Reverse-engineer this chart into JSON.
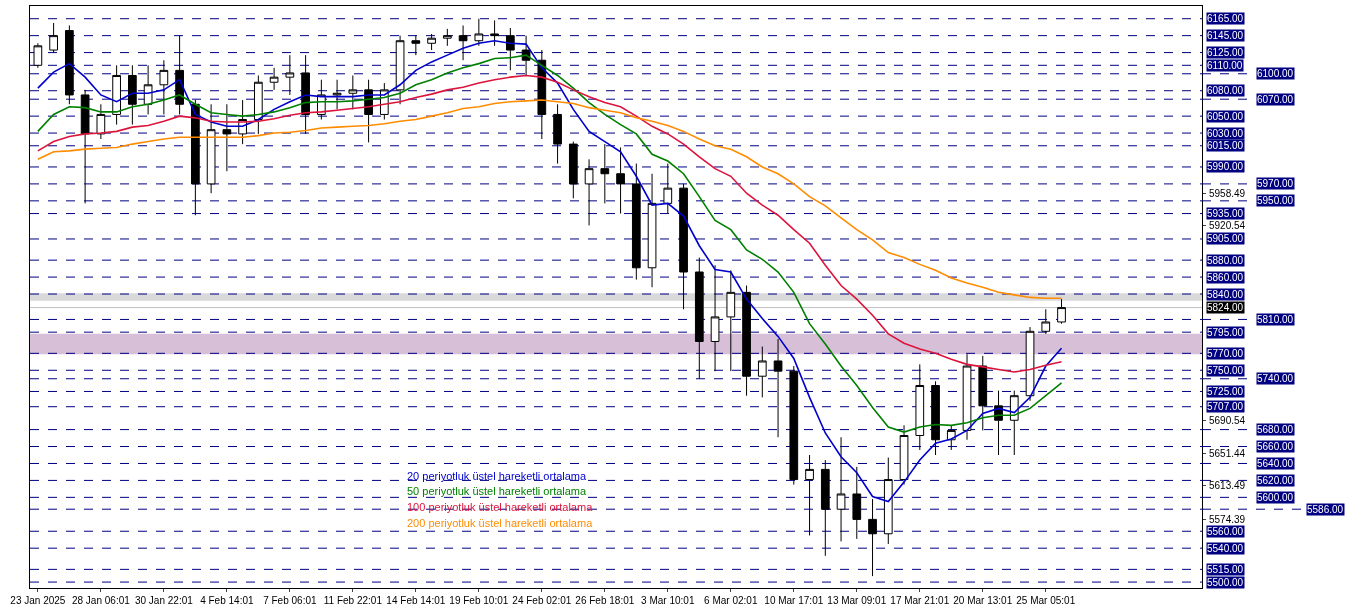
{
  "chart_data": {
    "type": "candlestick",
    "categories": [
      "23 Jan 2025",
      null,
      null,
      null,
      "28 Jan 06:01",
      null,
      null,
      null,
      "30 Jan 22:01",
      null,
      null,
      null,
      "4 Feb 14:01",
      null,
      null,
      null,
      "7 Feb 06:01",
      null,
      null,
      null,
      "11 Feb 22:01",
      null,
      null,
      null,
      "14 Feb 14:01",
      null,
      null,
      null,
      "19 Feb 10:01",
      null,
      null,
      null,
      "24 Feb 02:01",
      null,
      null,
      null,
      "26 Feb 18:01",
      null,
      null,
      null,
      "3 Mar 10:01",
      null,
      null,
      null,
      "6 Mar 02:01",
      null,
      null,
      null,
      "10 Mar 17:01",
      null,
      null,
      null,
      "13 Mar 09:01",
      null,
      null,
      null,
      "17 Mar 21:01",
      null,
      null,
      null,
      "20 Mar 13:01",
      null,
      null,
      null,
      "25 Mar 05:01",
      null
    ],
    "ohlc": [
      [
        6110,
        6136,
        6107,
        6133
      ],
      [
        6128,
        6160,
        6125,
        6145
      ],
      [
        6151,
        6157,
        6064,
        6075
      ],
      [
        6075,
        6081,
        5947,
        6029
      ],
      [
        6029,
        6064,
        6023,
        6052
      ],
      [
        6052,
        6110,
        6040,
        6098
      ],
      [
        6098,
        6110,
        6040,
        6064
      ],
      [
        6064,
        6110,
        6052,
        6087
      ],
      [
        6087,
        6116,
        6052,
        6104
      ],
      [
        6104,
        6145,
        6052,
        6064
      ],
      [
        6064,
        6069,
        5933,
        5970
      ],
      [
        5970,
        6064,
        5959,
        6034
      ],
      [
        6034,
        6064,
        5985,
        6029
      ],
      [
        6029,
        6069,
        6017,
        6046
      ],
      [
        6046,
        6098,
        6029,
        6090
      ],
      [
        6090,
        6107,
        6081,
        6096
      ],
      [
        6096,
        6122,
        6075,
        6101
      ],
      [
        6101,
        6122,
        6029,
        6052
      ],
      [
        6052,
        6093,
        6046,
        6075
      ],
      [
        6075,
        6093,
        6058,
        6077
      ],
      [
        6077,
        6098,
        6058,
        6081
      ],
      [
        6081,
        6093,
        6019,
        6052
      ],
      [
        6052,
        6089,
        6046,
        6081
      ],
      [
        6081,
        6145,
        6064,
        6139
      ],
      [
        6139,
        6145,
        6122,
        6136
      ],
      [
        6136,
        6147,
        6128,
        6142
      ],
      [
        6142,
        6153,
        6133,
        6145
      ],
      [
        6145,
        6157,
        6116,
        6139
      ],
      [
        6139,
        6165,
        6133,
        6147
      ],
      [
        6147,
        6163,
        6133,
        6145
      ],
      [
        6145,
        6154,
        6104,
        6128
      ],
      [
        6128,
        6145,
        6098,
        6116
      ],
      [
        6116,
        6128,
        6023,
        6052
      ],
      [
        6052,
        6064,
        5994,
        6017
      ],
      [
        6017,
        6020,
        5953,
        5970
      ],
      [
        5970,
        5999,
        5921,
        5988
      ],
      [
        5988,
        6017,
        5947,
        5982
      ],
      [
        5982,
        6013,
        5935,
        5970
      ],
      [
        5970,
        5994,
        5857,
        5871
      ],
      [
        5871,
        5982,
        5848,
        5947
      ],
      [
        5947,
        5994,
        5935,
        5965
      ],
      [
        5965,
        5970,
        5822,
        5866
      ],
      [
        5866,
        5883,
        5740,
        5784
      ],
      [
        5784,
        5874,
        5749,
        5813
      ],
      [
        5813,
        5868,
        5749,
        5842
      ],
      [
        5842,
        5850,
        5720,
        5743
      ],
      [
        5743,
        5778,
        5718,
        5761
      ],
      [
        5761,
        5787,
        5671,
        5749
      ],
      [
        5749,
        5755,
        5615,
        5621
      ],
      [
        5621,
        5650,
        5555,
        5633
      ],
      [
        5633,
        5644,
        5531,
        5586
      ],
      [
        5586,
        5671,
        5548,
        5604
      ],
      [
        5604,
        5636,
        5551,
        5574
      ],
      [
        5574,
        5598,
        5507,
        5557
      ],
      [
        5557,
        5647,
        5545,
        5621
      ],
      [
        5621,
        5685,
        5615,
        5673
      ],
      [
        5673,
        5757,
        5656,
        5732
      ],
      [
        5732,
        5737,
        5650,
        5668
      ],
      [
        5668,
        5685,
        5656,
        5679
      ],
      [
        5679,
        5769,
        5668,
        5755
      ],
      [
        5755,
        5767,
        5679,
        5708
      ],
      [
        5708,
        5726,
        5650,
        5691
      ],
      [
        5691,
        5726,
        5650,
        5720
      ],
      [
        5720,
        5801,
        5714,
        5796
      ],
      [
        5796,
        5822,
        5793,
        5807
      ],
      [
        5807,
        5834,
        5805,
        5824
      ]
    ],
    "series": [
      {
        "name": "20 periyotluk üstel hareketli ortalama",
        "type": "line",
        "color": "#0000cd",
        "values": [
          6083,
          6102,
          6112,
          6096,
          6075,
          6067,
          6077,
          6077,
          6081,
          6093,
          6052,
          6043,
          6038,
          6038,
          6046,
          6058,
          6067,
          6075,
          6073,
          6073,
          6073,
          6075,
          6075,
          6087,
          6104,
          6114,
          6122,
          6130,
          6136,
          6139,
          6136,
          6135,
          6107,
          6089,
          6058,
          6032,
          6020,
          6008,
          5979,
          5945,
          5947,
          5932,
          5897,
          5869,
          5866,
          5834,
          5811,
          5790,
          5764,
          5718,
          5676,
          5648,
          5629,
          5601,
          5595,
          5618,
          5644,
          5664,
          5669,
          5679,
          5699,
          5705,
          5700,
          5718,
          5755,
          5776
        ]
      },
      {
        "name": "50 periyotluk üstel hareketli ortalama",
        "type": "line",
        "color": "#008000",
        "values": [
          6032,
          6052,
          6061,
          6060,
          6055,
          6055,
          6061,
          6064,
          6069,
          6075,
          6064,
          6054,
          6052,
          6050,
          6052,
          6055,
          6060,
          6066,
          6067,
          6067,
          6068,
          6070,
          6072,
          6077,
          6087,
          6093,
          6101,
          6107,
          6112,
          6118,
          6119,
          6122,
          6110,
          6098,
          6083,
          6066,
          6052,
          6040,
          6029,
          6005,
          5997,
          5982,
          5955,
          5927,
          5916,
          5892,
          5881,
          5866,
          5842,
          5805,
          5781,
          5755,
          5732,
          5706,
          5683,
          5677,
          5683,
          5686,
          5685,
          5688,
          5694,
          5697,
          5697,
          5705,
          5720,
          5735
        ]
      },
      {
        "name": "100 periyotluk üstel hareketli ortalama",
        "type": "line",
        "color": "#dc143c",
        "values": [
          6009,
          6020,
          6026,
          6029,
          6030,
          6032,
          6037,
          6039,
          6044,
          6050,
          6048,
          6044,
          6043,
          6043,
          6044,
          6047,
          6051,
          6054,
          6055,
          6057,
          6059,
          6061,
          6064,
          6067,
          6072,
          6076,
          6081,
          6084,
          6089,
          6093,
          6096,
          6098,
          6096,
          6090,
          6081,
          6073,
          6066,
          6061,
          6050,
          6038,
          6029,
          6017,
          6002,
          5988,
          5979,
          5959,
          5945,
          5933,
          5916,
          5900,
          5874,
          5850,
          5834,
          5815,
          5793,
          5782,
          5775,
          5770,
          5763,
          5757,
          5754,
          5751,
          5748,
          5751,
          5756,
          5760
        ]
      },
      {
        "name": "200 periyotluk üstel hareketli ortalama",
        "type": "line",
        "color": "#ff8c00",
        "values": [
          5999,
          6008,
          6009,
          6011,
          6012,
          6013,
          6017,
          6020,
          6023,
          6025,
          6025,
          6025,
          6025,
          6025,
          6027,
          6030,
          6031,
          6033,
          6036,
          6037,
          6038,
          6039,
          6041,
          6044,
          6046,
          6050,
          6054,
          6059,
          6061,
          6065,
          6067,
          6068,
          6069,
          6067,
          6065,
          6060,
          6057,
          6054,
          6048,
          6044,
          6039,
          6032,
          6023,
          6015,
          6011,
          6002,
          5990,
          5982,
          5970,
          5955,
          5944,
          5930,
          5916,
          5904,
          5889,
          5883,
          5875,
          5868,
          5859,
          5853,
          5848,
          5842,
          5839,
          5836,
          5835,
          5835
        ]
      }
    ],
    "ylim": [
      5493,
      6180
    ],
    "yticks": [
      5958.49,
      5920.54,
      5690.54,
      5651.44,
      5613.49,
      5574.39
    ],
    "ref_lines": [
      {
        "axis": "y",
        "value": 6165,
        "label": "6165.00",
        "color": "#000080",
        "line_style": "dashed"
      },
      {
        "axis": "y",
        "value": 6145,
        "label": "6145.00",
        "color": "#000080",
        "line_style": "dashed"
      },
      {
        "axis": "y",
        "value": 6125,
        "label": "6125.00",
        "color": "#000080",
        "line_style": "dashed"
      },
      {
        "axis": "y",
        "value": 6110,
        "label": "6110.00",
        "color": "#000080",
        "line_style": "dashed"
      },
      {
        "axis": "y",
        "value": 6100,
        "label": "6100.00",
        "color": "#000080",
        "line_style": "dashed"
      },
      {
        "axis": "y",
        "value": 6080,
        "label": "6080.00",
        "color": "#000080",
        "line_style": "dashed"
      },
      {
        "axis": "y",
        "value": 6070,
        "label": "6070.00",
        "color": "#000080",
        "line_style": "dashed"
      },
      {
        "axis": "y",
        "value": 6050,
        "label": "6050.00",
        "color": "#000080",
        "line_style": "dashed"
      },
      {
        "axis": "y",
        "value": 6030,
        "label": "6030.00",
        "color": "#000080",
        "line_style": "dashed"
      },
      {
        "axis": "y",
        "value": 6015,
        "label": "6015.00",
        "color": "#000080",
        "line_style": "dashed"
      },
      {
        "axis": "y",
        "value": 5990,
        "label": "5990.00",
        "color": "#000080",
        "line_style": "dashed"
      },
      {
        "axis": "y",
        "value": 5970,
        "label": "5970.00",
        "color": "#000080",
        "line_style": "dashed"
      },
      {
        "axis": "y",
        "value": 5950,
        "label": "5950.00",
        "color": "#000080",
        "line_style": "dashed"
      },
      {
        "axis": "y",
        "value": 5935,
        "label": "5935.00",
        "color": "#000080",
        "line_style": "dashed"
      },
      {
        "axis": "y",
        "value": 5905,
        "label": "5905.00",
        "color": "#000080",
        "line_style": "dashed"
      },
      {
        "axis": "y",
        "value": 5880,
        "label": "5880.00",
        "color": "#000080",
        "line_style": "dashed"
      },
      {
        "axis": "y",
        "value": 5860,
        "label": "5860.00",
        "color": "#000080",
        "line_style": "dashed"
      },
      {
        "axis": "y",
        "value": 5840,
        "label": "5840.00",
        "color": "#000080",
        "line_style": "dashed"
      },
      {
        "axis": "y",
        "value": 5824,
        "label": "5824.00",
        "color": "#c0c0c0",
        "line_style": "solid"
      },
      {
        "axis": "y",
        "value": 5810,
        "label": "5810.00",
        "color": "#000080",
        "line_style": "dashed"
      },
      {
        "axis": "y",
        "value": 5795,
        "label": "5795.00",
        "color": "#000080",
        "line_style": "dashed"
      },
      {
        "axis": "y",
        "value": 5770,
        "label": "5770.00",
        "color": "#000080",
        "line_style": "dashed"
      },
      {
        "axis": "y",
        "value": 5750,
        "label": "5750.00",
        "color": "#000080",
        "line_style": "dashed"
      },
      {
        "axis": "y",
        "value": 5740,
        "label": "5740.00",
        "color": "#000080",
        "line_style": "dashed"
      },
      {
        "axis": "y",
        "value": 5725,
        "label": "5725.00",
        "color": "#000080",
        "line_style": "dashed"
      },
      {
        "axis": "y",
        "value": 5707,
        "label": "5707.00",
        "color": "#000080",
        "line_style": "dashed"
      },
      {
        "axis": "y",
        "value": 5680,
        "label": "5680.00",
        "color": "#000080",
        "line_style": "dashed"
      },
      {
        "axis": "y",
        "value": 5660,
        "label": "5660.00",
        "color": "#000080",
        "line_style": "dashed"
      },
      {
        "axis": "y",
        "value": 5640,
        "label": "5640.00",
        "color": "#000080",
        "line_style": "dashed"
      },
      {
        "axis": "y",
        "value": 5620,
        "label": "5620.00",
        "color": "#000080",
        "line_style": "dashed"
      },
      {
        "axis": "y",
        "value": 5600,
        "label": "5600.00",
        "color": "#000080",
        "line_style": "dashed"
      },
      {
        "axis": "y",
        "value": 5586,
        "label": "5586.00",
        "color": "#000080",
        "line_style": "dashed"
      },
      {
        "axis": "y",
        "value": 5560,
        "label": "5560.00",
        "color": "#000080",
        "line_style": "dashed"
      },
      {
        "axis": "y",
        "value": 5540,
        "label": "5540.00",
        "color": "#000080",
        "line_style": "dashed"
      },
      {
        "axis": "y",
        "value": 5515,
        "label": "5515.00",
        "color": "#000080",
        "line_style": "dashed"
      },
      {
        "axis": "y",
        "value": 5500,
        "label": "5500.00",
        "color": "#000080",
        "line_style": "dashed"
      }
    ],
    "bands": [
      {
        "axis": "y",
        "from": 5832,
        "to": 5841,
        "color": "#d9d9d9"
      },
      {
        "axis": "y",
        "from": 5769,
        "to": 5793,
        "color": "#d8bfd8"
      }
    ],
    "grid": false,
    "legend": false
  }
}
